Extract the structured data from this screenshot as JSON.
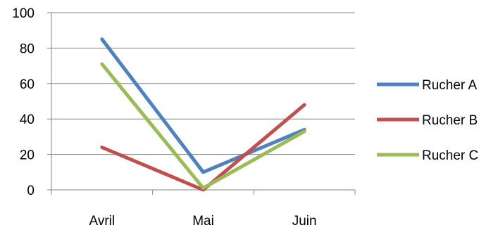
{
  "chart_data": {
    "type": "line",
    "categories": [
      "Avril",
      "Mai",
      "Juin"
    ],
    "series": [
      {
        "name": "Rucher A",
        "values": [
          85,
          10,
          34
        ],
        "color": "#4F81BD"
      },
      {
        "name": "Rucher B",
        "values": [
          24,
          0,
          48
        ],
        "color": "#C0504D"
      },
      {
        "name": "Rucher C",
        "values": [
          71,
          1,
          33
        ],
        "color": "#9BBB59"
      }
    ],
    "title": "",
    "xlabel": "",
    "ylabel": "",
    "ylim": [
      0,
      100
    ],
    "yticks": [
      0,
      20,
      40,
      60,
      80,
      100
    ],
    "grid": true,
    "legend": "right"
  }
}
